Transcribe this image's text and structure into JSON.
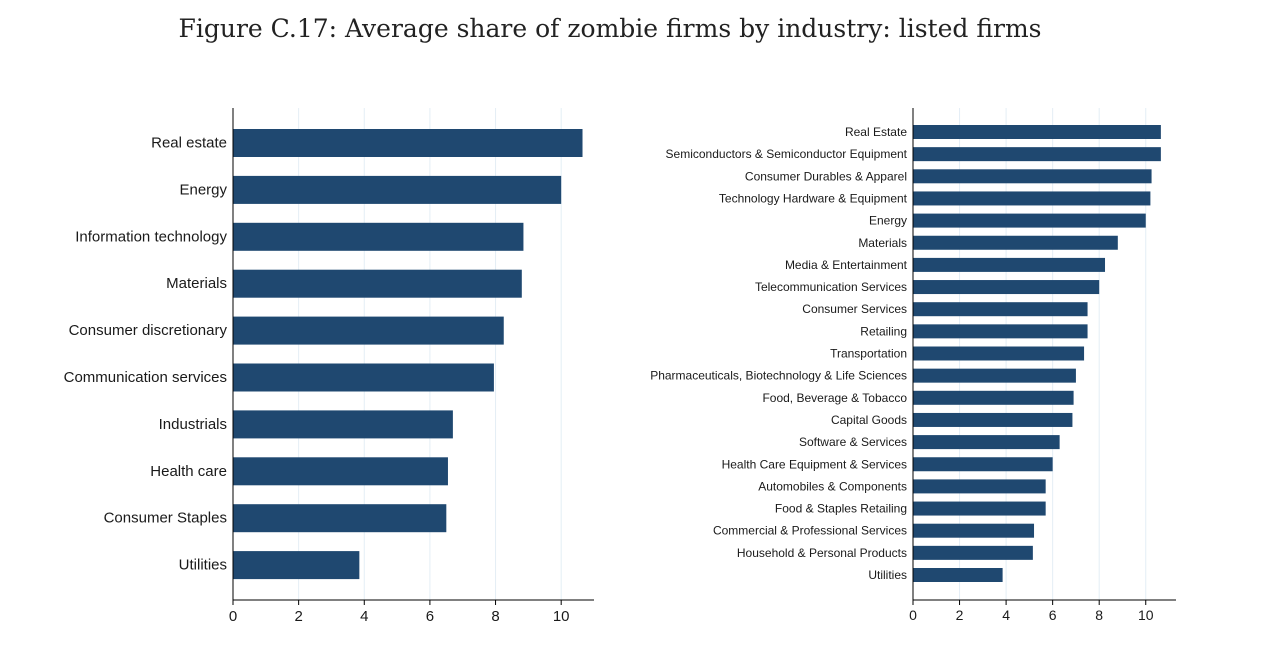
{
  "figure_title": "Figure C.17: Average share of zombie firms by industry: listed firms",
  "colors": {
    "bar": "#1f4870",
    "axis": "#000000",
    "grid": "#e4eef5"
  },
  "chart_data": [
    {
      "type": "bar",
      "orientation": "horizontal",
      "title": "",
      "xlim": [
        0,
        11
      ],
      "xticks": [
        0,
        2,
        4,
        6,
        8,
        10
      ],
      "grid": true,
      "categories": [
        "Real estate",
        "Energy",
        "Information technology",
        "Materials",
        "Consumer discretionary",
        "Communication services",
        "Industrials",
        "Health care",
        "Consumer Staples",
        "Utilities"
      ],
      "values": [
        10.65,
        10.0,
        8.85,
        8.8,
        8.25,
        7.95,
        6.7,
        6.55,
        6.5,
        3.85
      ]
    },
    {
      "type": "bar",
      "orientation": "horizontal",
      "title": "",
      "xlim": [
        0,
        11.3
      ],
      "xticks": [
        0,
        2,
        4,
        6,
        8,
        10
      ],
      "grid": true,
      "categories": [
        "Real Estate",
        "Semiconductors & Semiconductor Equipment",
        "Consumer Durables & Apparel",
        "Technology Hardware & Equipment",
        "Energy",
        "Materials",
        "Media & Entertainment",
        "Telecommunication Services",
        "Consumer Services",
        "Retailing",
        "Transportation",
        "Pharmaceuticals, Biotechnology & Life Sciences",
        "Food, Beverage & Tobacco",
        "Capital Goods",
        "Software & Services",
        "Health Care Equipment & Services",
        "Automobiles & Components",
        "Food & Staples Retailing",
        "Commercial & Professional Services",
        "Household & Personal Products",
        "Utilities"
      ],
      "values": [
        10.65,
        10.65,
        10.25,
        10.2,
        10.0,
        8.8,
        8.25,
        8.0,
        7.5,
        7.5,
        7.35,
        7.0,
        6.9,
        6.85,
        6.3,
        6.0,
        5.7,
        5.7,
        5.2,
        5.15,
        3.85
      ]
    }
  ]
}
